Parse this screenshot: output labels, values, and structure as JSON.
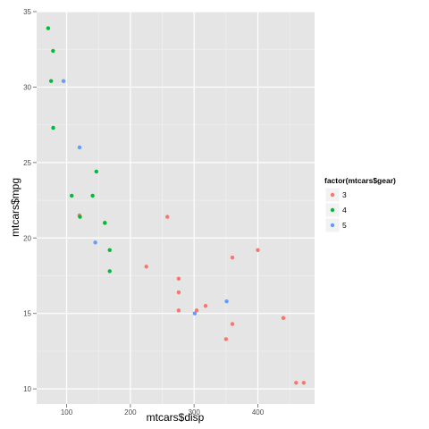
{
  "chart_data": {
    "type": "scatter",
    "xlabel": "mtcars$disp",
    "ylabel": "mtcars$mpg",
    "xlim": [
      53,
      489
    ],
    "ylim": [
      9,
      35
    ],
    "x_ticks": [
      100,
      200,
      300,
      400
    ],
    "y_ticks": [
      10,
      15,
      20,
      25,
      30,
      35
    ],
    "grid": true,
    "legend": {
      "title": "factor(mtcars$gear)",
      "position": "right",
      "entries": [
        "3",
        "4",
        "5"
      ]
    },
    "series": [
      {
        "name": "3",
        "color": "#F8766D",
        "points": [
          [
            258,
            21.4
          ],
          [
            360,
            18.7
          ],
          [
            225,
            18.1
          ],
          [
            360,
            14.3
          ],
          [
            275.8,
            16.4
          ],
          [
            275.8,
            17.3
          ],
          [
            275.8,
            15.2
          ],
          [
            472,
            10.4
          ],
          [
            460,
            10.4
          ],
          [
            440,
            14.7
          ],
          [
            120.1,
            21.5
          ],
          [
            318,
            15.5
          ],
          [
            304,
            15.2
          ],
          [
            350,
            13.3
          ],
          [
            400,
            19.2
          ]
        ]
      },
      {
        "name": "4",
        "color": "#00BA38",
        "points": [
          [
            160,
            21.0
          ],
          [
            160,
            21.0
          ],
          [
            108,
            22.8
          ],
          [
            146.7,
            24.4
          ],
          [
            140.8,
            22.8
          ],
          [
            167.6,
            19.2
          ],
          [
            167.6,
            17.8
          ],
          [
            78.7,
            32.4
          ],
          [
            75.7,
            30.4
          ],
          [
            71.1,
            33.9
          ],
          [
            79,
            27.3
          ],
          [
            121,
            21.4
          ]
        ]
      },
      {
        "name": "5",
        "color": "#619CFF",
        "points": [
          [
            120.3,
            26.0
          ],
          [
            95.1,
            30.4
          ],
          [
            351,
            15.8
          ],
          [
            145,
            19.7
          ],
          [
            301,
            15.0
          ]
        ]
      }
    ]
  }
}
